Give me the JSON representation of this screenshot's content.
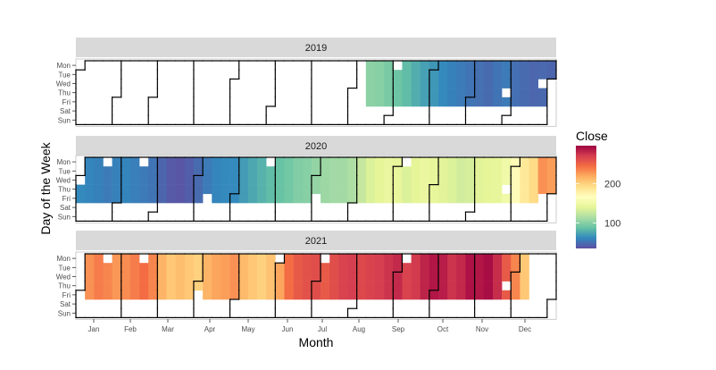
{
  "chart_data": {
    "type": "heatmap",
    "subtype": "calendar",
    "xlabel": "Month",
    "ylabel": "Day of the Week",
    "legend": {
      "title": "Close",
      "ticks": [
        100,
        200
      ],
      "range": [
        35,
        297
      ],
      "palette": "Spectral (reversed)",
      "placement": "right"
    },
    "month_labels": [
      "Jan",
      "Feb",
      "Mar",
      "Apr",
      "May",
      "Jun",
      "Jul",
      "Aug",
      "Sep",
      "Oct",
      "Nov",
      "Dec"
    ],
    "weekday_labels": [
      "Mon",
      "Tue",
      "Wed",
      "Thu",
      "Fri",
      "Sat",
      "Sun"
    ],
    "panels": [
      {
        "year": "2019",
        "first_week": 32,
        "last_date": "2019-12-31",
        "weekly_close": [
          102,
          100,
          95,
          90,
          85,
          78,
          72,
          68,
          62,
          58,
          55,
          52,
          50,
          48,
          52,
          55,
          50,
          48,
          46,
          47,
          45
        ]
      },
      {
        "year": "2020",
        "first_week": 0,
        "last_date": "2020-12-31",
        "weekly_close": [
          62,
          60,
          58,
          55,
          58,
          60,
          57,
          55,
          52,
          45,
          40,
          38,
          42,
          48,
          55,
          60,
          62,
          62,
          70,
          75,
          80,
          85,
          88,
          92,
          98,
          100,
          105,
          108,
          110,
          110,
          115,
          125,
          135,
          140,
          145,
          142,
          135,
          140,
          145,
          142,
          138,
          135,
          130,
          132,
          138,
          140,
          142,
          150,
          170,
          185,
          195,
          230,
          225
        ]
      },
      {
        "year": "2021",
        "first_week": 0,
        "last_date": "2021-12-10",
        "weekly_close": [
          225,
          230,
          238,
          235,
          228,
          232,
          238,
          245,
          235,
          215,
          205,
          210,
          205,
          200,
          215,
          222,
          225,
          230,
          212,
          205,
          200,
          208,
          222,
          245,
          255,
          260,
          262,
          255,
          262,
          268,
          270,
          265,
          268,
          270,
          275,
          280,
          268,
          272,
          282,
          288,
          285,
          275,
          280,
          290,
          288,
          292,
          278,
          255,
          235,
          205
        ]
      }
    ],
    "missing_dates": [
      "2019-09-02",
      "2019-11-28",
      "2019-12-25",
      "2020-01-01",
      "2020-01-20",
      "2020-02-17",
      "2020-04-10",
      "2020-05-25",
      "2020-07-03",
      "2020-09-07",
      "2020-11-26",
      "2020-12-25",
      "2021-01-01",
      "2021-01-18",
      "2021-02-15",
      "2021-04-02",
      "2021-05-31",
      "2021-07-05",
      "2021-09-06",
      "2021-11-25"
    ],
    "colors": [
      "#5E4FA2",
      "#3288BD",
      "#66C2A5",
      "#ABDDA4",
      "#E6F598",
      "#FFFFBF",
      "#FEE08B",
      "#FDAE61",
      "#F46D43",
      "#D53E4F",
      "#9E0142"
    ]
  }
}
